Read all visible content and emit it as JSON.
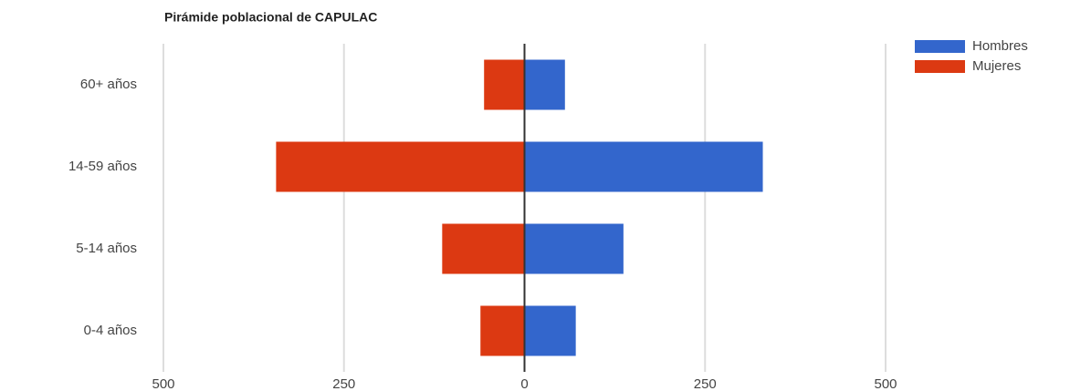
{
  "chart_data": {
    "type": "bar",
    "orientation": "horizontal",
    "stacked": true,
    "title": "Pirámide poblacional de CAPULAC",
    "categories": [
      "60+ años",
      "14-59 años",
      "5-14 años",
      "0-4 años"
    ],
    "series": [
      {
        "name": "Hombres",
        "color": "#3366cc",
        "values": [
          56,
          330,
          137,
          71
        ]
      },
      {
        "name": "Mujeres",
        "color": "#dc3912",
        "values": [
          -56,
          -344,
          -114,
          -61
        ]
      }
    ],
    "xlim": [
      -500,
      500
    ],
    "xticks": [
      {
        "value": -500,
        "label": "500"
      },
      {
        "value": -250,
        "label": "250"
      },
      0,
      250,
      500
    ],
    "grid": true,
    "legend": "top-right"
  }
}
